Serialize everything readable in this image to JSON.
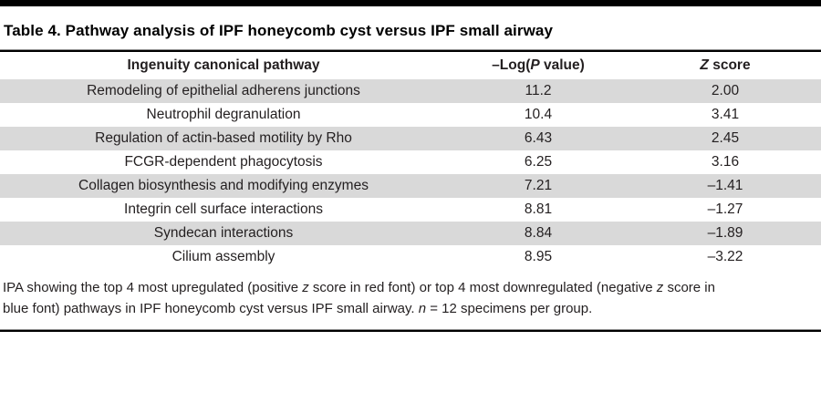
{
  "title": "Table 4. Pathway analysis of IPF honeycomb cyst versus IPF small airway",
  "colors": {
    "row_shade": "#d9d9d9",
    "rule": "#000000",
    "text": "#231f20"
  },
  "table": {
    "columns": [
      {
        "name": "pathway",
        "label_segments": [
          {
            "t": "Ingenuity canonical pathway"
          }
        ]
      },
      {
        "name": "neglogp",
        "label_segments": [
          {
            "t": "–Log("
          },
          {
            "t": "P",
            "i": true
          },
          {
            "t": " value)"
          }
        ]
      },
      {
        "name": "zscore",
        "label_segments": [
          {
            "t": "Z",
            "i": true
          },
          {
            "t": " score"
          }
        ]
      }
    ],
    "rows": [
      {
        "pathway": "Remodeling of epithelial adherens junctions",
        "neglogp": "11.2",
        "zscore": "2.00",
        "shaded": true
      },
      {
        "pathway": "Neutrophil degranulation",
        "neglogp": "10.4",
        "zscore": "3.41",
        "shaded": false
      },
      {
        "pathway": "Regulation of actin-based motility by Rho",
        "neglogp": "6.43",
        "zscore": "2.45",
        "shaded": true
      },
      {
        "pathway": "FCGR-dependent phagocytosis",
        "neglogp": "6.25",
        "zscore": "3.16",
        "shaded": false
      },
      {
        "pathway": "Collagen biosynthesis and modifying enzymes",
        "neglogp": "7.21",
        "zscore": "–1.41",
        "shaded": true
      },
      {
        "pathway": "Integrin cell surface interactions",
        "neglogp": "8.81",
        "zscore": "–1.27",
        "shaded": false
      },
      {
        "pathway": "Syndecan interactions",
        "neglogp": "8.84",
        "zscore": "–1.89",
        "shaded": true
      },
      {
        "pathway": "Cilium assembly",
        "neglogp": "8.95",
        "zscore": "–3.22",
        "shaded": false
      }
    ]
  },
  "caption": {
    "lines": [
      {
        "segments": [
          {
            "t": "IPA showing the top 4 most upregulated (positive "
          },
          {
            "t": "z",
            "i": true
          },
          {
            "t": " score in red font) or top 4 most downregulated (negative "
          },
          {
            "t": "z",
            "i": true
          },
          {
            "t": " score in"
          }
        ]
      },
      {
        "segments": [
          {
            "t": "blue font) pathways in IPF honeycomb cyst versus IPF small airway. "
          },
          {
            "t": "n",
            "i": true
          },
          {
            "t": " = 12 specimens per group."
          }
        ]
      }
    ]
  }
}
